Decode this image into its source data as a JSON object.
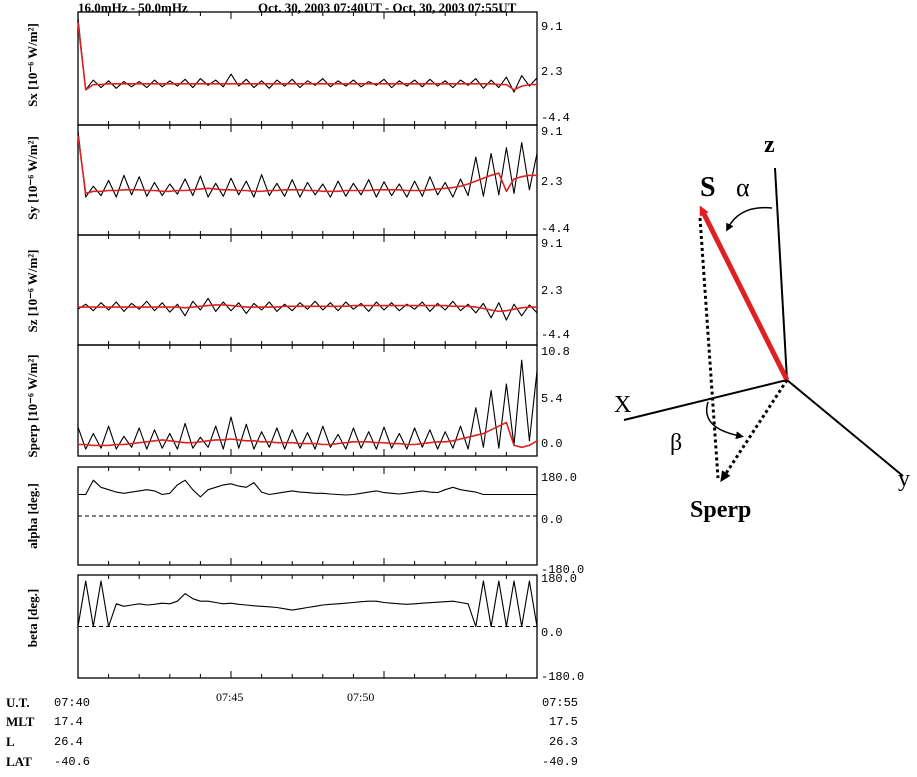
{
  "header": {
    "freq_band": "16.0mHz - 50.0mHz",
    "time_range": "Oct. 30, 2003 07:40UT - Oct. 30, 2003 07:55UT"
  },
  "chart_data": [
    {
      "type": "line",
      "ylabel": "Sx [10⁻⁶ W/m²]",
      "yticks": [
        "9.1",
        "2.3",
        "-4.4"
      ],
      "ylim": [
        -4.4,
        9.1
      ],
      "series": [
        {
          "color": "#000000",
          "values": [
            9.1,
            -0.5,
            0.8,
            -0.2,
            0.7,
            -0.3,
            0.6,
            -0.1,
            0.6,
            -0.2,
            0.8,
            -0.1,
            0.7,
            0.0,
            0.9,
            -0.2,
            1.0,
            0.1,
            0.8,
            -0.1,
            1.6,
            0.0,
            0.9,
            -0.2,
            0.7,
            -0.3,
            0.8,
            0.0,
            0.9,
            -0.2,
            0.7,
            0.1,
            1.0,
            -0.1,
            0.7,
            0.0,
            0.8,
            -0.1,
            0.6,
            0.1,
            0.9,
            -0.2,
            0.7,
            0.0,
            0.8,
            -0.1,
            0.9,
            0.0,
            0.7,
            -0.2,
            0.8,
            0.1,
            1.0,
            -0.3,
            0.8,
            -0.2,
            1.2,
            -0.8,
            1.4,
            0.0,
            1.1
          ]
        },
        {
          "color": "#dd2222",
          "values": [
            8.5,
            -0.5,
            0.2,
            0.2,
            0.3,
            0.3,
            0.3,
            0.3,
            0.3,
            0.3,
            0.3,
            0.3,
            0.3,
            0.3,
            0.3,
            0.3,
            0.3,
            0.3,
            0.3,
            0.3,
            0.3,
            0.3,
            0.3,
            0.3,
            0.3,
            0.3,
            0.3,
            0.3,
            0.3,
            0.3,
            0.3,
            0.3,
            0.3,
            0.3,
            0.3,
            0.3,
            0.3,
            0.3,
            0.3,
            0.3,
            0.3,
            0.3,
            0.3,
            0.3,
            0.3,
            0.3,
            0.3,
            0.3,
            0.3,
            0.3,
            0.3,
            0.3,
            0.3,
            0.3,
            0.3,
            0.2,
            0.2,
            -0.5,
            0.0,
            0.2,
            0.2
          ]
        }
      ]
    },
    {
      "type": "line",
      "ylabel": "Sy [10⁻⁶ W/m²]",
      "yticks": [
        "9.1",
        "2.3",
        "-4.4"
      ],
      "ylim": [
        -4.4,
        9.1
      ],
      "series": [
        {
          "color": "#000000",
          "values": [
            9.1,
            0.0,
            1.5,
            0.2,
            2.3,
            0.0,
            3.0,
            0.3,
            2.8,
            0.1,
            2.0,
            0.2,
            1.8,
            0.4,
            2.5,
            0.2,
            2.9,
            0.0,
            1.9,
            0.1,
            2.6,
            0.3,
            2.2,
            0.0,
            3.1,
            0.2,
            1.9,
            0.1,
            2.4,
            0.0,
            2.0,
            0.3,
            1.8,
            0.0,
            2.2,
            0.1,
            1.9,
            0.3,
            2.4,
            0.0,
            2.1,
            0.2,
            1.8,
            0.0,
            2.2,
            0.1,
            2.8,
            0.3,
            2.0,
            0.0,
            2.5,
            0.2,
            5.5,
            0.1,
            6.0,
            0.3,
            6.8,
            0.5,
            7.5,
            1.0,
            6.0
          ]
        },
        {
          "color": "#dd2222",
          "values": [
            8.5,
            0.5,
            0.8,
            0.8,
            0.9,
            0.9,
            1.0,
            1.0,
            1.0,
            0.9,
            0.9,
            0.8,
            0.8,
            0.9,
            0.9,
            1.0,
            1.1,
            1.2,
            1.1,
            1.0,
            1.0,
            0.9,
            0.9,
            0.8,
            0.8,
            0.9,
            0.9,
            1.0,
            1.0,
            1.0,
            0.9,
            0.9,
            0.8,
            0.8,
            0.8,
            0.9,
            0.9,
            0.9,
            0.9,
            1.0,
            1.0,
            1.0,
            1.0,
            0.9,
            0.9,
            0.9,
            1.0,
            1.1,
            1.2,
            1.3,
            1.5,
            1.8,
            2.2,
            2.6,
            3.0,
            3.3,
            0.8,
            2.5,
            2.8,
            3.0,
            3.0
          ]
        }
      ]
    },
    {
      "type": "line",
      "ylabel": "Sz [10⁻⁶ W/m²]",
      "yticks": [
        "9.1",
        "2.3",
        "-4.4"
      ],
      "ylim": [
        -4.4,
        9.1
      ],
      "series": [
        {
          "color": "#000000",
          "values": [
            -0.3,
            0.4,
            -0.5,
            0.6,
            -0.4,
            0.7,
            -0.6,
            0.5,
            -0.3,
            0.8,
            -0.5,
            0.6,
            -0.7,
            0.4,
            -1.2,
            0.8,
            -0.4,
            1.2,
            -0.6,
            0.7,
            -0.5,
            0.6,
            -0.9,
            0.5,
            -0.4,
            0.7,
            -0.6,
            0.4,
            -0.5,
            0.6,
            -0.3,
            0.8,
            -0.4,
            0.6,
            -0.5,
            0.7,
            -0.3,
            0.5,
            -0.6,
            0.7,
            -0.4,
            0.6,
            -0.5,
            0.4,
            -0.3,
            0.7,
            -0.6,
            0.5,
            -0.4,
            0.8,
            -0.5,
            0.4,
            -0.8,
            0.5,
            -1.5,
            0.6,
            -1.8,
            0.4,
            -1.2,
            0.3,
            -0.8
          ]
        },
        {
          "color": "#dd2222",
          "values": [
            0.0,
            0.0,
            0.0,
            0.0,
            0.0,
            0.0,
            0.0,
            0.0,
            0.0,
            0.0,
            0.0,
            0.0,
            0.0,
            0.0,
            -0.1,
            0.0,
            0.1,
            0.2,
            0.3,
            0.3,
            0.2,
            0.1,
            0.0,
            0.0,
            0.0,
            0.0,
            0.0,
            0.1,
            0.1,
            0.1,
            0.1,
            0.1,
            0.1,
            0.1,
            0.1,
            0.1,
            0.2,
            0.2,
            0.2,
            0.2,
            0.2,
            0.2,
            0.2,
            0.2,
            0.2,
            0.2,
            0.2,
            0.2,
            0.2,
            0.1,
            0.1,
            0.1,
            0.0,
            -0.2,
            -0.4,
            -0.6,
            -0.5,
            -0.3,
            -0.1,
            0.0,
            0.0
          ]
        }
      ]
    },
    {
      "type": "line",
      "ylabel": "Sperp [10⁻⁶ W/m²]",
      "yticks": [
        "10.8",
        "5.4",
        "0.0"
      ],
      "ylim": [
        0.0,
        10.8
      ],
      "series": [
        {
          "color": "#000000",
          "values": [
            2.5,
            0.1,
            1.8,
            0.2,
            2.6,
            0.1,
            1.5,
            0.3,
            2.4,
            0.1,
            2.2,
            0.2,
            1.8,
            0.1,
            2.9,
            0.2,
            1.4,
            0.3,
            2.6,
            0.1,
            3.6,
            0.2,
            2.8,
            0.1,
            2.0,
            0.3,
            2.4,
            0.1,
            2.2,
            0.2,
            1.9,
            0.1,
            2.6,
            0.3,
            1.7,
            0.1,
            2.4,
            0.2,
            2.0,
            0.1,
            2.5,
            0.2,
            1.8,
            0.1,
            2.4,
            0.3,
            2.2,
            0.1,
            2.0,
            0.2,
            2.6,
            0.1,
            4.6,
            0.3,
            6.5,
            0.2,
            7.2,
            0.5,
            9.8,
            1.0,
            8.6
          ]
        },
        {
          "color": "#dd2222",
          "values": [
            0.6,
            0.6,
            0.5,
            0.5,
            0.5,
            0.6,
            0.6,
            0.7,
            0.8,
            0.9,
            1.0,
            1.1,
            1.0,
            0.9,
            0.8,
            0.8,
            0.9,
            1.0,
            1.1,
            1.1,
            1.2,
            1.1,
            1.0,
            1.0,
            0.9,
            0.9,
            0.8,
            0.8,
            0.8,
            0.7,
            0.7,
            0.7,
            0.6,
            0.6,
            0.7,
            0.8,
            0.9,
            0.9,
            0.9,
            0.8,
            0.8,
            0.7,
            0.7,
            0.6,
            0.6,
            0.7,
            0.8,
            0.9,
            0.9,
            1.0,
            1.2,
            1.4,
            1.6,
            1.8,
            2.2,
            2.6,
            3.0,
            0.5,
            0.3,
            0.5,
            1.0
          ]
        }
      ]
    },
    {
      "type": "line",
      "ylabel": "alpha [deg.]",
      "yticks": [
        "180.0",
        "0.0",
        "-180.0"
      ],
      "ylim": [
        -180.0,
        180.0
      ],
      "series": [
        {
          "color": "#000000",
          "values": [
            90,
            90,
            150,
            120,
            110,
            100,
            95,
            100,
            105,
            110,
            105,
            90,
            95,
            130,
            150,
            110,
            80,
            110,
            120,
            130,
            135,
            125,
            120,
            140,
            100,
            90,
            95,
            100,
            105,
            100,
            98,
            95,
            95,
            92,
            90,
            88,
            90,
            95,
            100,
            105,
            98,
            95,
            92,
            96,
            100,
            105,
            100,
            98,
            110,
            120,
            110,
            105,
            100,
            90,
            90,
            90,
            90,
            90,
            90,
            90,
            90
          ]
        }
      ]
    },
    {
      "type": "line",
      "ylabel": "beta [deg.]",
      "yticks": [
        "180.0",
        "0.0",
        "-180.0"
      ],
      "ylim": [
        -180.0,
        180.0
      ],
      "series": [
        {
          "color": "#000000",
          "values": [
            0,
            180,
            0,
            180,
            0,
            90,
            80,
            85,
            90,
            85,
            88,
            92,
            90,
            100,
            130,
            110,
            100,
            100,
            95,
            90,
            92,
            88,
            85,
            82,
            80,
            78,
            75,
            70,
            65,
            70,
            75,
            80,
            85,
            88,
            90,
            92,
            95,
            98,
            100,
            100,
            95,
            92,
            90,
            88,
            90,
            92,
            94,
            96,
            98,
            100,
            95,
            90,
            0,
            180,
            0,
            180,
            0,
            180,
            0,
            180,
            0
          ]
        }
      ]
    }
  ],
  "x_axis": {
    "ticks": [
      "07:45",
      "07:50"
    ]
  },
  "footer": {
    "rows": [
      {
        "label": "U.T.",
        "start": "07:40",
        "end": "07:55"
      },
      {
        "label": "MLT",
        "start": "17.4",
        "end": "17.5"
      },
      {
        "label": "L",
        "start": "26.4",
        "end": "26.3"
      },
      {
        "label": "LAT",
        "start": "-40.6",
        "end": "-40.9"
      }
    ]
  },
  "diagram": {
    "label_z": "z",
    "label_x": "X",
    "label_y": "y",
    "label_s": "S",
    "label_alpha": "α",
    "label_beta": "β",
    "label_sperp": "Sperp",
    "vector_color": "#e02020"
  }
}
